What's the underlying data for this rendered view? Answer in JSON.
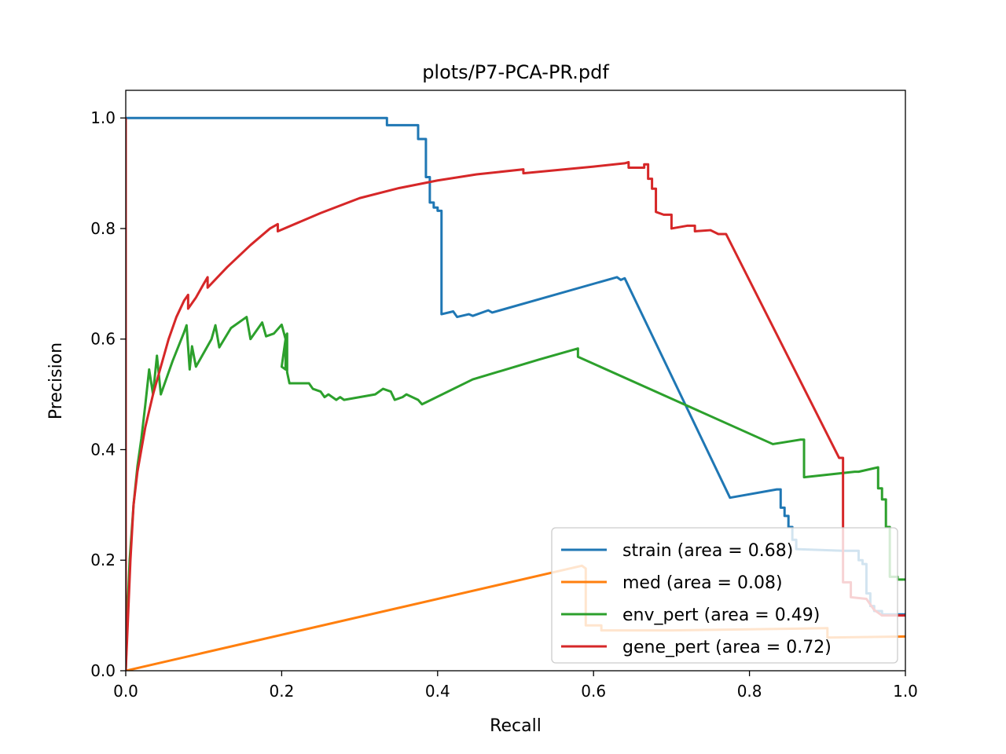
{
  "chart_data": {
    "type": "line",
    "title": "plots/P7-PCA-PR.pdf",
    "xlabel": "Recall",
    "ylabel": "Precision",
    "xlim": [
      0.0,
      1.0
    ],
    "ylim": [
      0.0,
      1.05
    ],
    "xticks": [
      "0.0",
      "0.2",
      "0.4",
      "0.6",
      "0.8",
      "1.0"
    ],
    "yticks": [
      "0.0",
      "0.2",
      "0.4",
      "0.6",
      "0.8",
      "1.0"
    ],
    "grid": false,
    "legend_position": "lower-right",
    "series": [
      {
        "name": "strain (area = 0.68)",
        "color": "#1f77b4",
        "points": [
          [
            0.0,
            1.0
          ],
          [
            0.335,
            1.0
          ],
          [
            0.335,
            0.987
          ],
          [
            0.375,
            0.987
          ],
          [
            0.375,
            0.962
          ],
          [
            0.385,
            0.962
          ],
          [
            0.385,
            0.893
          ],
          [
            0.39,
            0.893
          ],
          [
            0.39,
            0.847
          ],
          [
            0.395,
            0.847
          ],
          [
            0.395,
            0.838
          ],
          [
            0.4,
            0.838
          ],
          [
            0.4,
            0.832
          ],
          [
            0.405,
            0.832
          ],
          [
            0.405,
            0.645
          ],
          [
            0.42,
            0.65
          ],
          [
            0.425,
            0.64
          ],
          [
            0.44,
            0.645
          ],
          [
            0.445,
            0.642
          ],
          [
            0.465,
            0.652
          ],
          [
            0.47,
            0.648
          ],
          [
            0.48,
            0.652
          ],
          [
            0.63,
            0.712
          ],
          [
            0.635,
            0.707
          ],
          [
            0.64,
            0.71
          ],
          [
            0.775,
            0.313
          ],
          [
            0.835,
            0.328
          ],
          [
            0.84,
            0.328
          ],
          [
            0.84,
            0.295
          ],
          [
            0.845,
            0.295
          ],
          [
            0.845,
            0.28
          ],
          [
            0.85,
            0.28
          ],
          [
            0.85,
            0.26
          ],
          [
            0.855,
            0.26
          ],
          [
            0.855,
            0.237
          ],
          [
            0.86,
            0.237
          ],
          [
            0.86,
            0.22
          ],
          [
            0.92,
            0.217
          ],
          [
            0.94,
            0.217
          ],
          [
            0.94,
            0.2
          ],
          [
            0.945,
            0.2
          ],
          [
            0.945,
            0.193
          ],
          [
            0.95,
            0.193
          ],
          [
            0.95,
            0.14
          ],
          [
            0.955,
            0.14
          ],
          [
            0.955,
            0.117
          ],
          [
            0.96,
            0.117
          ],
          [
            0.96,
            0.108
          ],
          [
            0.97,
            0.108
          ],
          [
            0.97,
            0.102
          ],
          [
            1.0,
            0.102
          ]
        ]
      },
      {
        "name": "med (area = 0.08)",
        "color": "#ff7f0e",
        "points": [
          [
            0.0,
            0.0
          ],
          [
            0.585,
            0.19
          ],
          [
            0.59,
            0.185
          ],
          [
            0.59,
            0.082
          ],
          [
            0.61,
            0.082
          ],
          [
            0.61,
            0.073
          ],
          [
            0.7,
            0.073
          ],
          [
            0.9,
            0.077
          ],
          [
            0.9,
            0.06
          ],
          [
            1.0,
            0.062
          ]
        ]
      },
      {
        "name": "env_pert (area = 0.49)",
        "color": "#2ca02c",
        "points": [
          [
            0.0,
            0.0
          ],
          [
            0.002,
            0.1
          ],
          [
            0.005,
            0.2
          ],
          [
            0.01,
            0.3
          ],
          [
            0.015,
            0.37
          ],
          [
            0.02,
            0.42
          ],
          [
            0.025,
            0.48
          ],
          [
            0.03,
            0.545
          ],
          [
            0.035,
            0.5
          ],
          [
            0.04,
            0.57
          ],
          [
            0.045,
            0.5
          ],
          [
            0.06,
            0.56
          ],
          [
            0.075,
            0.613
          ],
          [
            0.078,
            0.625
          ],
          [
            0.082,
            0.545
          ],
          [
            0.085,
            0.587
          ],
          [
            0.09,
            0.55
          ],
          [
            0.11,
            0.6
          ],
          [
            0.115,
            0.625
          ],
          [
            0.12,
            0.585
          ],
          [
            0.135,
            0.62
          ],
          [
            0.155,
            0.64
          ],
          [
            0.16,
            0.6
          ],
          [
            0.175,
            0.63
          ],
          [
            0.18,
            0.605
          ],
          [
            0.19,
            0.61
          ],
          [
            0.2,
            0.626
          ],
          [
            0.205,
            0.6
          ],
          [
            0.2,
            0.55
          ],
          [
            0.205,
            0.545
          ],
          [
            0.205,
            0.605
          ],
          [
            0.207,
            0.61
          ],
          [
            0.207,
            0.54
          ],
          [
            0.21,
            0.52
          ],
          [
            0.235,
            0.52
          ],
          [
            0.24,
            0.51
          ],
          [
            0.25,
            0.505
          ],
          [
            0.255,
            0.495
          ],
          [
            0.26,
            0.5
          ],
          [
            0.27,
            0.49
          ],
          [
            0.275,
            0.495
          ],
          [
            0.28,
            0.49
          ],
          [
            0.32,
            0.5
          ],
          [
            0.33,
            0.51
          ],
          [
            0.34,
            0.505
          ],
          [
            0.345,
            0.49
          ],
          [
            0.355,
            0.495
          ],
          [
            0.36,
            0.5
          ],
          [
            0.375,
            0.49
          ],
          [
            0.38,
            0.482
          ],
          [
            0.445,
            0.527
          ],
          [
            0.53,
            0.563
          ],
          [
            0.58,
            0.583
          ],
          [
            0.58,
            0.568
          ],
          [
            0.83,
            0.41
          ],
          [
            0.865,
            0.418
          ],
          [
            0.87,
            0.418
          ],
          [
            0.87,
            0.35
          ],
          [
            0.935,
            0.36
          ],
          [
            0.94,
            0.36
          ],
          [
            0.965,
            0.368
          ],
          [
            0.965,
            0.33
          ],
          [
            0.97,
            0.33
          ],
          [
            0.97,
            0.31
          ],
          [
            0.975,
            0.31
          ],
          [
            0.975,
            0.26
          ],
          [
            0.98,
            0.26
          ],
          [
            0.98,
            0.17
          ],
          [
            0.99,
            0.17
          ],
          [
            0.99,
            0.165
          ],
          [
            1.0,
            0.165
          ]
        ]
      },
      {
        "name": "gene_pert (area = 0.72)",
        "color": "#d62728",
        "points": [
          [
            0.0,
            1.0
          ],
          [
            0.0,
            0.0
          ],
          [
            0.003,
            0.1
          ],
          [
            0.006,
            0.2
          ],
          [
            0.01,
            0.3
          ],
          [
            0.015,
            0.36
          ],
          [
            0.02,
            0.4
          ],
          [
            0.025,
            0.44
          ],
          [
            0.03,
            0.47
          ],
          [
            0.035,
            0.5
          ],
          [
            0.045,
            0.55
          ],
          [
            0.055,
            0.6
          ],
          [
            0.065,
            0.64
          ],
          [
            0.075,
            0.67
          ],
          [
            0.08,
            0.68
          ],
          [
            0.08,
            0.655
          ],
          [
            0.09,
            0.675
          ],
          [
            0.1,
            0.7
          ],
          [
            0.105,
            0.712
          ],
          [
            0.105,
            0.693
          ],
          [
            0.13,
            0.73
          ],
          [
            0.16,
            0.77
          ],
          [
            0.185,
            0.8
          ],
          [
            0.195,
            0.808
          ],
          [
            0.195,
            0.795
          ],
          [
            0.25,
            0.828
          ],
          [
            0.3,
            0.855
          ],
          [
            0.35,
            0.873
          ],
          [
            0.4,
            0.887
          ],
          [
            0.45,
            0.898
          ],
          [
            0.51,
            0.907
          ],
          [
            0.51,
            0.9
          ],
          [
            0.6,
            0.912
          ],
          [
            0.64,
            0.918
          ],
          [
            0.645,
            0.92
          ],
          [
            0.645,
            0.91
          ],
          [
            0.665,
            0.91
          ],
          [
            0.665,
            0.916
          ],
          [
            0.67,
            0.916
          ],
          [
            0.67,
            0.89
          ],
          [
            0.675,
            0.89
          ],
          [
            0.675,
            0.872
          ],
          [
            0.68,
            0.872
          ],
          [
            0.68,
            0.83
          ],
          [
            0.69,
            0.825
          ],
          [
            0.7,
            0.825
          ],
          [
            0.7,
            0.8
          ],
          [
            0.72,
            0.805
          ],
          [
            0.73,
            0.805
          ],
          [
            0.73,
            0.795
          ],
          [
            0.75,
            0.797
          ],
          [
            0.76,
            0.79
          ],
          [
            0.77,
            0.79
          ],
          [
            0.915,
            0.385
          ],
          [
            0.92,
            0.385
          ],
          [
            0.92,
            0.16
          ],
          [
            0.93,
            0.16
          ],
          [
            0.93,
            0.133
          ],
          [
            0.95,
            0.13
          ],
          [
            0.96,
            0.11
          ],
          [
            0.97,
            0.1
          ],
          [
            0.99,
            0.1
          ],
          [
            1.0,
            0.1
          ]
        ]
      }
    ]
  }
}
